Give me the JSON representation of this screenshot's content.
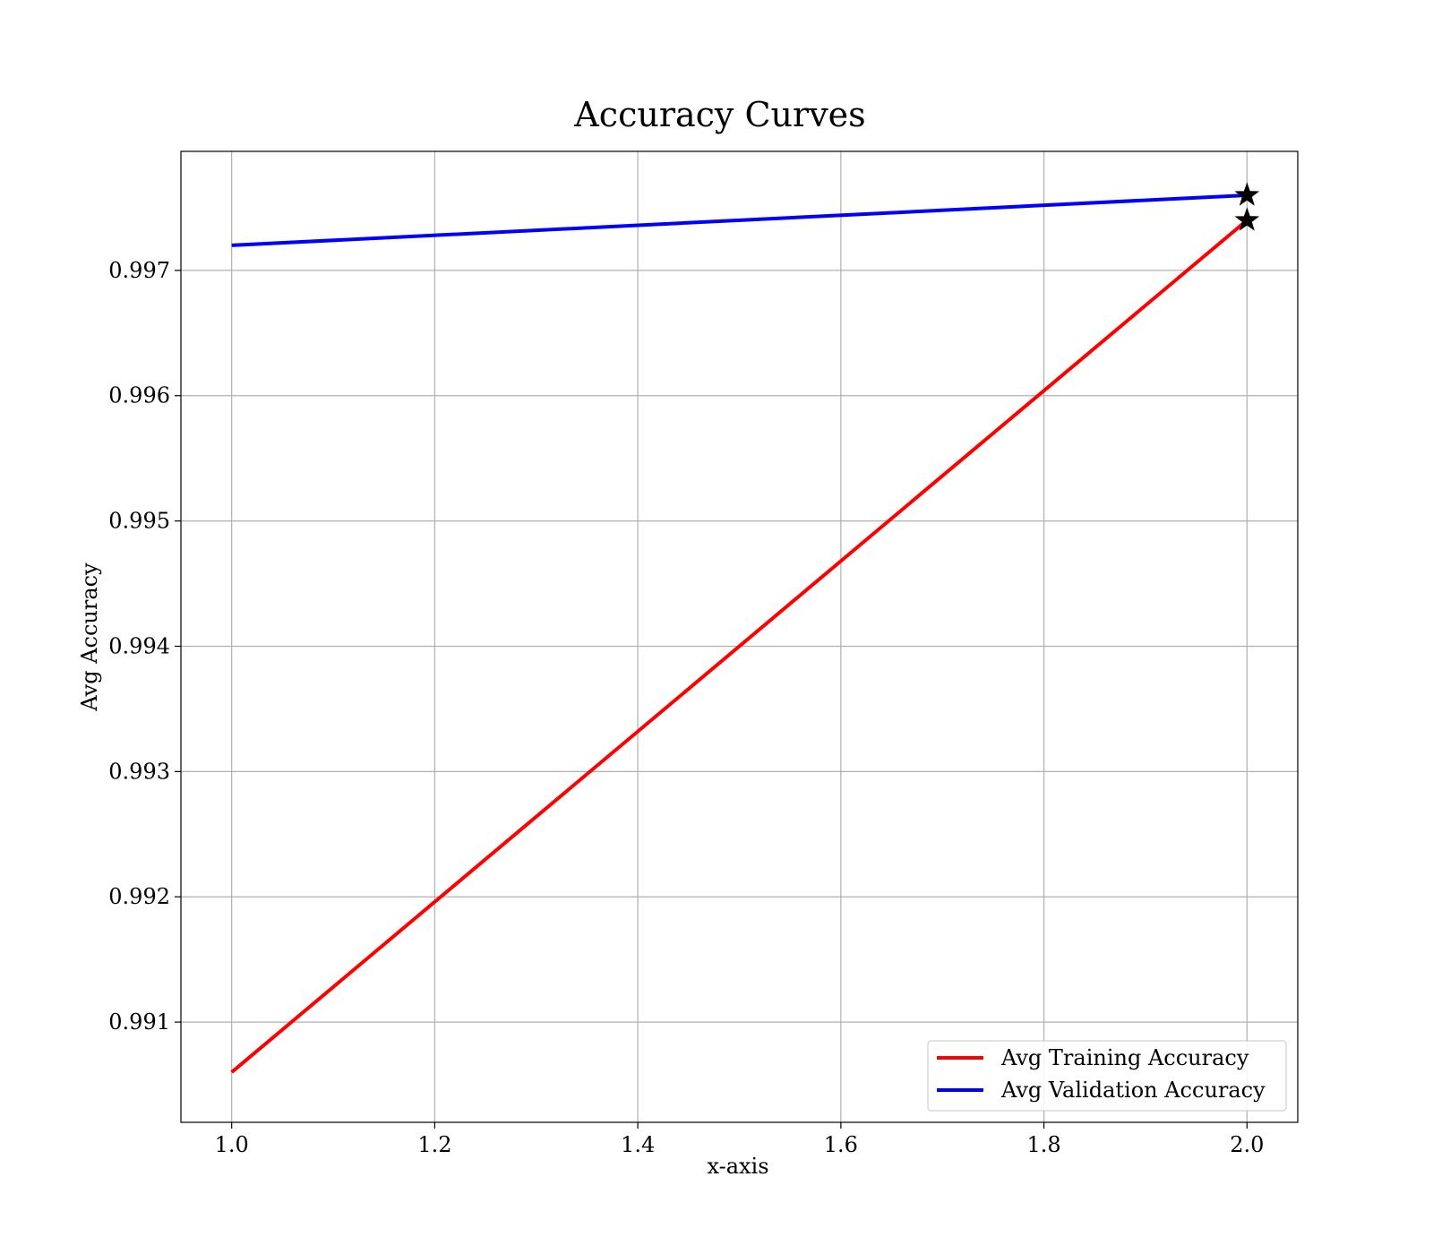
{
  "chart_data": {
    "type": "line",
    "title": "Accuracy Curves",
    "xlabel": "x-axis",
    "ylabel": "Avg Accuracy",
    "xlim": [
      0.95,
      2.05
    ],
    "ylim": [
      0.9902,
      0.99795
    ],
    "xticks": [
      1.0,
      1.2,
      1.4,
      1.6,
      1.8,
      2.0
    ],
    "xtick_labels": [
      "1.0",
      "1.2",
      "1.4",
      "1.6",
      "1.8",
      "2.0"
    ],
    "yticks": [
      0.991,
      0.992,
      0.993,
      0.994,
      0.995,
      0.996,
      0.997
    ],
    "ytick_labels": [
      "0.991",
      "0.992",
      "0.993",
      "0.994",
      "0.995",
      "0.996",
      "0.997"
    ],
    "grid": true,
    "legend_position": "bottom-right",
    "series": [
      {
        "name": "Avg Training Accuracy",
        "color": "#ff0000",
        "x": [
          1.0,
          2.0
        ],
        "y": [
          0.9906,
          0.9974
        ],
        "best_marker": "star"
      },
      {
        "name": "Avg Validation Accuracy",
        "color": "#0000ff",
        "x": [
          1.0,
          2.0
        ],
        "y": [
          0.9972,
          0.9976
        ],
        "best_marker": "star"
      }
    ]
  }
}
